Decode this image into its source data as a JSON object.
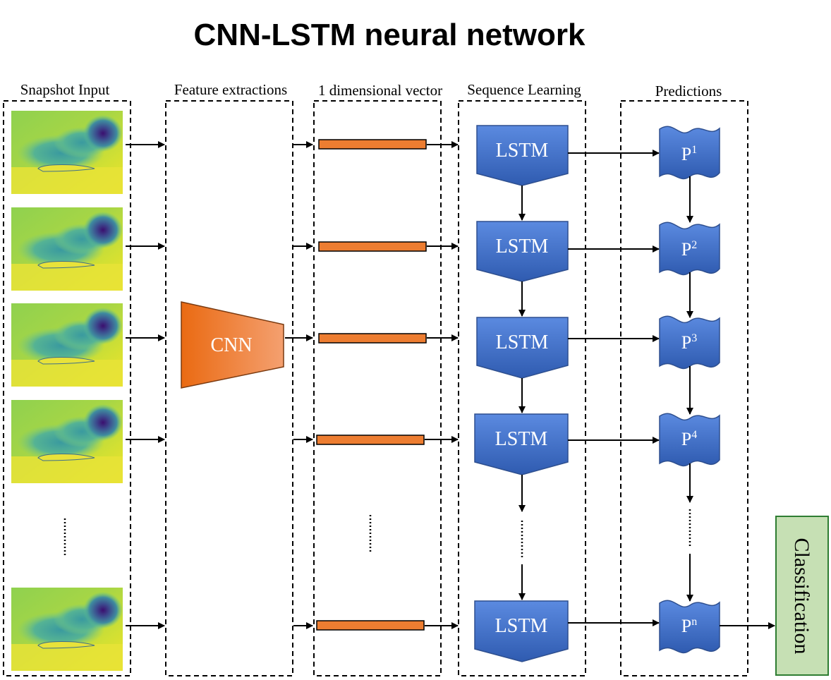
{
  "title": "CNN-LSTM neural network",
  "columns": {
    "snapshot": "Snapshot Input",
    "feature": "Feature extractions",
    "vector": "1 dimensional vector",
    "sequence": "Sequence Learning",
    "predictions": "Predictions"
  },
  "cnn_label": "CNN",
  "lstm_label": "LSTM",
  "prediction_labels": [
    {
      "base": "P",
      "sup": "1"
    },
    {
      "base": "P",
      "sup": "2"
    },
    {
      "base": "P",
      "sup": "3"
    },
    {
      "base": "P",
      "sup": "4"
    },
    {
      "base": "P",
      "sup": "n"
    }
  ],
  "classification_label": "Classification",
  "colors": {
    "cnn": "#ed7d31",
    "lstm": "#4472c4",
    "classification_bg": "#c6e0b4",
    "classification_border": "#2e7d32"
  }
}
